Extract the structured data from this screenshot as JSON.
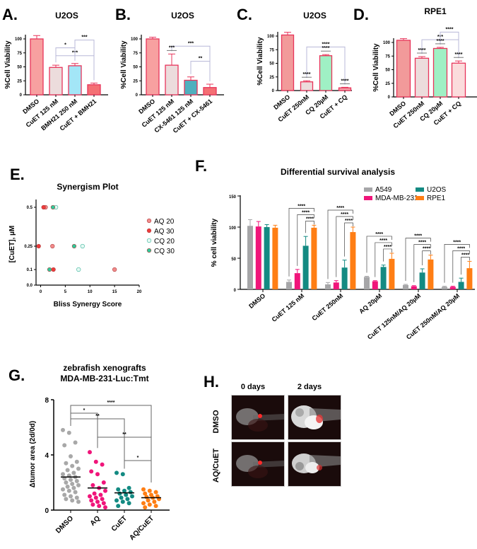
{
  "chart_data": [
    {
      "panel": "A.",
      "type": "bar",
      "title": "U2OS",
      "ylabel": "%Cell Viability",
      "ylim": [
        0,
        100
      ],
      "yticks": [
        "0",
        "25",
        "50",
        "75",
        "100"
      ],
      "categories": [
        "DMSO",
        "CuET 125 nM",
        "BMH21 250 nM",
        "CuET + BMH21"
      ],
      "values": [
        100,
        49,
        52,
        18
      ],
      "errors": [
        6,
        4,
        4,
        3
      ],
      "colors": [
        "#f7a0a0",
        "#ecdcdc",
        "#a3e6f7",
        "#f47074"
      ],
      "significance": [
        {
          "from": 1,
          "to": 3,
          "label": "***"
        },
        {
          "from": 1,
          "to": 2,
          "label": "*"
        },
        {
          "from": 2,
          "to": 3,
          "label": "***"
        }
      ]
    },
    {
      "panel": "B.",
      "type": "bar",
      "title": "U2OS",
      "ylabel": "%Cell Viability",
      "ylim": [
        0,
        100
      ],
      "yticks": [
        "0",
        "25",
        "50",
        "75",
        "100"
      ],
      "categories": [
        "DMSO",
        "CuET 125 nM",
        "CX-5461 125 nM",
        "CuET + CX-5461"
      ],
      "values": [
        100,
        53,
        26,
        13
      ],
      "errors": [
        3,
        20,
        6,
        6
      ],
      "colors": [
        "#f7a0a0",
        "#ecdcdc",
        "#4fb0be",
        "#f47074"
      ],
      "significance": [
        {
          "from": 1,
          "to": 3,
          "label": "***"
        },
        {
          "from": 1,
          "to": 1,
          "label": "***"
        },
        {
          "from": 2,
          "to": 3,
          "label": "**"
        }
      ]
    },
    {
      "panel": "C.",
      "type": "bar",
      "title": "U2OS",
      "ylabel": "%Cell Viability",
      "ylim": [
        0,
        100
      ],
      "yticks": [
        "0",
        "25",
        "50",
        "75",
        "100"
      ],
      "categories": [
        "DMSO",
        "CuET 250nM",
        "CQ 20µM",
        "CuET + CQ"
      ],
      "values": [
        102,
        16,
        64,
        5
      ],
      "errors": [
        5,
        2,
        2,
        1
      ],
      "colors": [
        "#f29a9a",
        "#ecdcdc",
        "#9ff0c4",
        "#f4a0a8"
      ],
      "significance": [
        {
          "from": 1,
          "to": 3,
          "label": "****"
        },
        {
          "from": 1,
          "to": 1,
          "label": "****"
        },
        {
          "from": 2,
          "to": 2,
          "label": "****"
        },
        {
          "from": 3,
          "to": 3,
          "label": "****"
        }
      ]
    },
    {
      "panel": "D.",
      "type": "bar",
      "title": "RPE1",
      "ylabel": "%Cell Viability",
      "ylim": [
        0,
        100
      ],
      "yticks": [
        "0",
        "25",
        "50",
        "75",
        "100"
      ],
      "categories": [
        "DMSO",
        "CuET 250nM",
        "CQ 20µM",
        "CuET + CQ"
      ],
      "values": [
        104,
        71,
        89,
        62
      ],
      "errors": [
        3,
        3,
        2,
        4
      ],
      "colors": [
        "#f29a9a",
        "#ecdcdc",
        "#9ff0c4",
        "#fbdcdc"
      ],
      "significance": [
        {
          "from": 1,
          "to": 3,
          "label": "***"
        },
        {
          "from": 2,
          "to": 3,
          "label": "****"
        },
        {
          "from": 1,
          "to": 1,
          "label": "****"
        },
        {
          "from": 2,
          "to": 2,
          "label": "****"
        },
        {
          "from": 3,
          "to": 3,
          "label": "****"
        }
      ]
    },
    {
      "panel": "E.",
      "type": "scatter",
      "title": "Synergism Plot",
      "xlabel": "Bliss Synergy Score",
      "ylabel": "[CuET], µM",
      "xlim": [
        -1,
        20
      ],
      "xticks": [
        "0",
        "5",
        "10",
        "15",
        "20"
      ],
      "yticks": [
        "0.0",
        "0.1",
        "0.25",
        "0.5"
      ],
      "legend_position": "right",
      "series": [
        {
          "name": "AQ 20",
          "color": "#f28b8b",
          "filled": true,
          "points": [
            {
              "x": 1.0,
              "y": "0.5"
            },
            {
              "x": 2.4,
              "y": "0.25"
            },
            {
              "x": 15.0,
              "y": "0.1"
            }
          ]
        },
        {
          "name": "AQ 30",
          "color": "#ee3b3b",
          "filled": true,
          "points": [
            {
              "x": 0.6,
              "y": "0.5"
            },
            {
              "x": -0.4,
              "y": "0.25"
            },
            {
              "x": 2.6,
              "y": "0.1"
            }
          ]
        },
        {
          "name": "CQ 20",
          "color": "#7fd6c4",
          "filled": false,
          "points": [
            {
              "x": 3.1,
              "y": "0.5"
            },
            {
              "x": 8.5,
              "y": "0.25"
            },
            {
              "x": 7.7,
              "y": "0.1"
            }
          ]
        },
        {
          "name": "CQ 30",
          "color": "#2fc99a",
          "filled": true,
          "points": [
            {
              "x": 2.5,
              "y": "0.5"
            },
            {
              "x": 6.8,
              "y": "0.25"
            },
            {
              "x": 1.8,
              "y": "0.1"
            }
          ]
        }
      ]
    },
    {
      "panel": "F.",
      "type": "bar",
      "title": "Differential survival analysis",
      "ylabel": "% cell viability",
      "ylim": [
        0,
        150
      ],
      "yticks": [
        "0",
        "50",
        "100",
        "150"
      ],
      "legend_position": "top-right",
      "categories": [
        "DMSO",
        "CuET 125 nM",
        "CuET 250nM",
        "AQ 20µM",
        "CuET 125nM/AQ 20µM",
        "CuET 250nM/AQ 20µM"
      ],
      "series": [
        {
          "name": "A549",
          "color": "#a6a6a8",
          "values": [
            102,
            12,
            8,
            20,
            7,
            4
          ],
          "errors": [
            10,
            3,
            3,
            1,
            1,
            1
          ]
        },
        {
          "name": "MDA-MB-231",
          "color": "#f0157a",
          "values": [
            101,
            26,
            11,
            13,
            5,
            4
          ],
          "errors": [
            8,
            6,
            3,
            1,
            1,
            1
          ]
        },
        {
          "name": "U2OS",
          "color": "#138a82",
          "values": [
            100,
            70,
            35,
            36,
            27,
            12
          ],
          "errors": [
            4,
            15,
            12,
            3,
            6,
            6
          ]
        },
        {
          "name": "RPE1",
          "color": "#ff7e14",
          "values": [
            99,
            99,
            92,
            49,
            48,
            34
          ],
          "errors": [
            4,
            4,
            8,
            9,
            7,
            11
          ]
        }
      ],
      "significance_label": "****"
    },
    {
      "panel": "G.",
      "type": "scatter",
      "title": "zebrafish xenografts",
      "subtitle": "MDA-MB-231-Luc:Tmt",
      "ylabel": "Δtumor area (2d/0d)",
      "ylim": [
        0,
        8
      ],
      "yticks": [
        "0",
        "4",
        "8"
      ],
      "categories": [
        "DMSO",
        "AQ",
        "CuET",
        "AQ/CuET"
      ],
      "colors": [
        "#a8a8a8",
        "#f0157a",
        "#138a82",
        "#ff7e14"
      ],
      "means": [
        2.4,
        1.6,
        1.25,
        0.9
      ],
      "points": [
        [
          5.8,
          5.6,
          4.9,
          4.7,
          3.9,
          3.5,
          3.4,
          3.2,
          3.0,
          2.9,
          2.7,
          2.6,
          2.5,
          2.4,
          2.3,
          2.2,
          2.1,
          2.0,
          1.9,
          1.8,
          1.7,
          1.6,
          1.5,
          1.4,
          1.3,
          1.1,
          1.0,
          0.9,
          0.8,
          0.7,
          0.6
        ],
        [
          4.2,
          3.5,
          3.3,
          2.8,
          2.6,
          2.0,
          1.8,
          1.6,
          1.4,
          1.2,
          1.1,
          1.0,
          0.9,
          0.8,
          0.7,
          0.6,
          0.5,
          0.4,
          0.3,
          0.2
        ],
        [
          2.7,
          2.6,
          1.6,
          1.5,
          1.4,
          1.3,
          1.2,
          1.1,
          1.0,
          0.9,
          0.8,
          0.7,
          0.6,
          0.5,
          0.3
        ],
        [
          1.5,
          1.4,
          1.3,
          1.2,
          1.1,
          1.0,
          0.95,
          0.9,
          0.8,
          0.7,
          0.6,
          0.5,
          0.4,
          0.3,
          0.2
        ]
      ],
      "significance": [
        {
          "from": 0,
          "to": 3,
          "label": "****"
        },
        {
          "from": 0,
          "to": 1,
          "label": "*"
        },
        {
          "from": 0,
          "to": 2,
          "label": "**"
        },
        {
          "from": 1,
          "to": 3,
          "label": "**"
        },
        {
          "from": 2,
          "to": 3,
          "label": "*"
        }
      ]
    }
  ],
  "panel_h": {
    "label": "H.",
    "columns": [
      "0 days",
      "2 days"
    ],
    "rows": [
      "DMSO",
      "AQ/CuET"
    ]
  }
}
